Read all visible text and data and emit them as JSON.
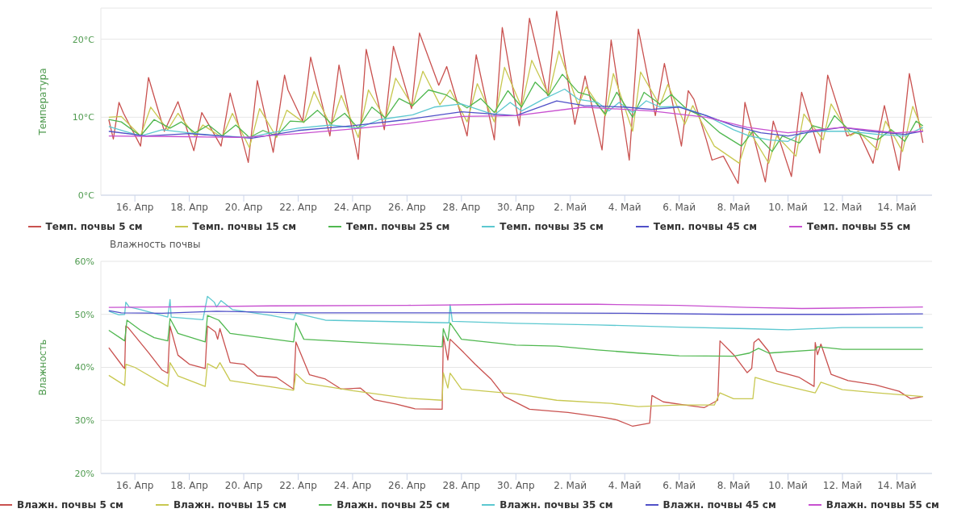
{
  "chart_data": [
    {
      "type": "line",
      "ylabel": "Температура",
      "xlim": [
        "--04-14T18:00",
        "--05-15T07:00"
      ],
      "ylim": [
        0,
        24
      ],
      "xticks": [
        {
          "value": "--04-16",
          "label": "16. Апр"
        },
        {
          "value": "--04-18",
          "label": "18. Апр"
        },
        {
          "value": "--04-20",
          "label": "20. Апр"
        },
        {
          "value": "--04-22",
          "label": "22. Апр"
        },
        {
          "value": "--04-24",
          "label": "24. Апр"
        },
        {
          "value": "--04-26",
          "label": "26. Апр"
        },
        {
          "value": "--04-28",
          "label": "28. Апр"
        },
        {
          "value": "--04-30",
          "label": "30. Апр"
        },
        {
          "value": "--05-02",
          "label": "2. Май"
        },
        {
          "value": "--05-04",
          "label": "4. Май"
        },
        {
          "value": "--05-06",
          "label": "6. Май"
        },
        {
          "value": "--05-08",
          "label": "8. Май"
        },
        {
          "value": "--05-10",
          "label": "10. Май"
        },
        {
          "value": "--05-12",
          "label": "12. Май"
        },
        {
          "value": "--05-14",
          "label": "14. Май"
        }
      ],
      "yticks": [
        {
          "value": 0,
          "label": "0°C"
        },
        {
          "value": 10,
          "label": "10°C"
        },
        {
          "value": 20,
          "label": "20°C"
        }
      ],
      "grid": "y",
      "legend": "bottom",
      "marker": "none",
      "line_style": "solid",
      "series": [
        {
          "name": "Темп. почвы 5 см",
          "color": "#c9514f",
          "x": [
            "--04-15T01:00",
            "--04-15T05:00",
            "--04-15T10:00",
            "--04-15T14:00",
            "--04-16T05:00",
            "--04-16T12:00",
            "--04-17T02:00",
            "--04-17T14:00",
            "--04-18T04:00",
            "--04-18T11:00",
            "--04-19T04:00",
            "--04-19T12:00",
            "--04-20T04:00",
            "--04-20T12:00",
            "--04-21T02:00",
            "--04-21T12:00",
            "--04-21T15:00",
            "--04-22T04:00",
            "--04-22T11:00",
            "--04-23T04:00",
            "--04-23T12:00",
            "--04-24T05:00",
            "--04-24T12:00",
            "--04-25T04:00",
            "--04-25T12:00",
            "--04-26T04:00",
            "--04-26T11:00",
            "--04-27T04:00",
            "--04-27T11:00",
            "--04-28T05:00",
            "--04-28T13:00",
            "--04-29T05:00",
            "--04-29T12:00",
            "--04-30T03:00",
            "--04-30T12:00",
            "--05-01T04:00",
            "--05-01T12:00",
            "--05-02T04:00",
            "--05-02T13:00",
            "--05-03T04:00",
            "--05-03T12:00",
            "--05-04T04:00",
            "--05-04T12:00",
            "--05-05T03:00",
            "--05-05T11:00",
            "--05-06T02:00",
            "--05-06T08:00",
            "--05-06T13:00",
            "--05-07T00:00",
            "--05-07T05:00",
            "--05-07T15:00",
            "--05-08T04:00",
            "--05-08T10:00",
            "--05-09T04:00",
            "--05-09T11:00",
            "--05-10T03:00",
            "--05-10T12:00",
            "--05-11T04:00",
            "--05-11T11:00",
            "--05-12T04:00",
            "--05-12T14:00",
            "--05-13T03:00",
            "--05-13T13:00",
            "--05-14T02:00",
            "--05-14T11:00",
            "--05-14T23:00"
          ],
          "values": [
            9.7,
            7.2,
            11.9,
            10.5,
            6.3,
            15.1,
            8.2,
            12.0,
            5.7,
            10.6,
            6.3,
            13.1,
            4.2,
            14.7,
            5.5,
            15.4,
            13.5,
            9.5,
            17.7,
            7.6,
            16.7,
            4.6,
            18.7,
            8.4,
            19.1,
            11.1,
            20.8,
            14.1,
            16.5,
            7.6,
            18.0,
            7.1,
            21.5,
            8.9,
            22.7,
            12.8,
            23.6,
            9.1,
            15.3,
            5.8,
            19.9,
            4.5,
            21.3,
            10.2,
            16.9,
            6.3,
            13.4,
            12.3,
            7.1,
            4.5,
            5.0,
            1.5,
            11.9,
            1.7,
            9.5,
            2.4,
            13.2,
            5.4,
            15.4,
            7.6,
            8.2,
            4.1,
            11.5,
            3.2,
            15.6,
            6.7
          ]
        },
        {
          "name": "Темп. почвы 15 см",
          "color": "#c8c850",
          "x": [
            "--04-15T01:00",
            "--04-15T12:00",
            "--04-16T05:00",
            "--04-16T14:00",
            "--04-17T05:00",
            "--04-17T14:00",
            "--04-18T05:00",
            "--04-18T12:00",
            "--04-19T05:00",
            "--04-19T14:00",
            "--04-20T05:00",
            "--04-20T14:00",
            "--04-21T05:00",
            "--04-21T14:00",
            "--04-22T05:00",
            "--04-22T14:00",
            "--04-23T05:00",
            "--04-23T14:00",
            "--04-24T05:00",
            "--04-24T14:00",
            "--04-25T05:00",
            "--04-25T14:00",
            "--04-26T05:00",
            "--04-26T14:00",
            "--04-27T05:00",
            "--04-27T14:00",
            "--04-28T05:00",
            "--04-28T14:00",
            "--04-29T05:00",
            "--04-29T14:00",
            "--04-30T05:00",
            "--04-30T14:00",
            "--05-01T05:00",
            "--05-01T14:00",
            "--05-02T07:00",
            "--05-02T14:00",
            "--05-03T07:00",
            "--05-03T14:00",
            "--05-04T07:00",
            "--05-04T14:00",
            "--05-05T07:00",
            "--05-05T14:00",
            "--05-06T05:00",
            "--05-06T12:00",
            "--05-07T07:00",
            "--05-08T05:00",
            "--05-08T14:00",
            "--05-09T07:00",
            "--05-09T14:00",
            "--05-10T07:00",
            "--05-10T14:00",
            "--05-11T07:00",
            "--05-11T14:00",
            "--05-12T07:00",
            "--05-12T14:00",
            "--05-13T07:00",
            "--05-13T14:00",
            "--05-14T05:00",
            "--05-14T14:00",
            "--05-14T23:00"
          ],
          "values": [
            10.0,
            10.1,
            7.6,
            11.3,
            8.4,
            10.5,
            7.6,
            9.0,
            7.4,
            10.5,
            6.1,
            11.1,
            7.4,
            10.9,
            9.3,
            13.3,
            8.8,
            12.8,
            7.4,
            13.5,
            9.7,
            15.0,
            11.4,
            15.9,
            11.6,
            13.5,
            9.4,
            14.3,
            9.4,
            16.4,
            11.3,
            17.3,
            12.8,
            18.5,
            11.5,
            13.9,
            10.2,
            15.6,
            8.2,
            15.8,
            11.5,
            14.2,
            9.1,
            11.5,
            6.3,
            4.1,
            8.2,
            4.1,
            7.6,
            5.0,
            10.4,
            7.1,
            11.7,
            7.6,
            8.2,
            5.8,
            9.5,
            5.6,
            11.4,
            8.2
          ]
        },
        {
          "name": "Темп. почвы 25 см",
          "color": "#50b850",
          "x": [
            "--04-15T01:00",
            "--04-15T12:00",
            "--04-16T05:00",
            "--04-16T17:00",
            "--04-17T07:00",
            "--04-17T17:00",
            "--04-18T05:00",
            "--04-18T17:00",
            "--04-19T05:00",
            "--04-19T17:00",
            "--04-20T05:00",
            "--04-20T17:00",
            "--04-21T05:00",
            "--04-21T17:00",
            "--04-22T05:00",
            "--04-22T17:00",
            "--04-23T05:00",
            "--04-23T17:00",
            "--04-24T05:00",
            "--04-24T17:00",
            "--04-25T05:00",
            "--04-25T17:00",
            "--04-26T05:00",
            "--04-26T19:00",
            "--04-27T10:00",
            "--04-28T05:00",
            "--04-28T17:00",
            "--04-29T05:00",
            "--04-29T17:00",
            "--04-30T05:00",
            "--04-30T17:00",
            "--05-01T05:00",
            "--05-01T17:00",
            "--05-02T07:00",
            "--05-02T17:00",
            "--05-03T07:00",
            "--05-03T17:00",
            "--05-04T07:00",
            "--05-04T17:00",
            "--05-05T07:00",
            "--05-05T17:00",
            "--05-06T07:00",
            "--05-06T19:00",
            "--05-07T12:00",
            "--05-08T07:00",
            "--05-08T17:00",
            "--05-09T10:00",
            "--05-09T19:00",
            "--05-10T10:00",
            "--05-10T22:00",
            "--05-11T10:00",
            "--05-11T17:00",
            "--05-12T07:00",
            "--05-13T07:00",
            "--05-13T19:00",
            "--05-14T07:00",
            "--05-14T17:00",
            "--05-14T23:00"
          ],
          "values": [
            9.7,
            9.4,
            7.6,
            9.7,
            8.6,
            9.4,
            8.0,
            9.0,
            7.6,
            9.0,
            7.4,
            8.3,
            7.6,
            9.5,
            9.4,
            10.9,
            9.2,
            10.5,
            8.6,
            11.3,
            9.9,
            12.4,
            11.5,
            13.5,
            12.9,
            11.2,
            12.4,
            10.6,
            13.4,
            11.3,
            14.5,
            12.8,
            15.5,
            13.2,
            12.8,
            10.4,
            13.2,
            10.0,
            13.2,
            11.7,
            12.9,
            11.0,
            10.2,
            8.0,
            6.3,
            8.2,
            5.6,
            7.6,
            6.7,
            8.9,
            8.4,
            10.2,
            8.2,
            7.1,
            8.4,
            6.9,
            9.5,
            8.9
          ]
        },
        {
          "name": "Темп. почвы 35 см",
          "color": "#5cc8d0",
          "x": [
            "--04-15T01:00",
            "--04-16T05:00",
            "--04-17T00:00",
            "--04-18T05:00",
            "--04-19T05:00",
            "--04-20T05:00",
            "--04-21T00:00",
            "--04-22T00:00",
            "--04-23T05:00",
            "--04-24T05:00",
            "--04-25T00:00",
            "--04-26T05:00",
            "--04-27T00:00",
            "--04-28T00:00",
            "--04-29T05:00",
            "--04-29T19:00",
            "--04-30T05:00",
            "--05-01T00:00",
            "--05-01T19:00",
            "--05-02T07:00",
            "--05-03T00:00",
            "--05-03T10:00",
            "--05-03T19:00",
            "--05-04T07:00",
            "--05-04T19:00",
            "--05-05T07:00",
            "--05-06T00:00",
            "--05-07T00:00",
            "--05-08T00:00",
            "--05-08T14:00",
            "--05-09T07:00",
            "--05-10T00:00",
            "--05-10T14:00",
            "--05-11T10:00",
            "--05-12T05:00",
            "--05-13T07:00",
            "--05-14T07:00",
            "--05-14T23:00"
          ],
          "values": [
            8.8,
            7.6,
            8.4,
            7.9,
            7.6,
            7.4,
            8.0,
            8.6,
            9.0,
            8.6,
            9.7,
            10.3,
            11.3,
            11.7,
            10.3,
            11.9,
            10.8,
            12.3,
            13.6,
            12.3,
            11.9,
            10.8,
            11.9,
            10.6,
            12.1,
            11.3,
            11.4,
            10.2,
            8.4,
            7.6,
            7.1,
            6.9,
            8.2,
            8.2,
            8.2,
            7.8,
            7.6,
            8.7
          ]
        },
        {
          "name": "Темп. почвы 45 см",
          "color": "#5050c8",
          "x": [
            "--04-15T01:00",
            "--04-16T10:00",
            "--04-18T00:00",
            "--04-20T07:00",
            "--04-22T00:00",
            "--04-24T00:00",
            "--04-26T00:00",
            "--04-28T00:00",
            "--04-30T00:00",
            "--05-01T12:00",
            "--05-02T12:00",
            "--05-04T00:00",
            "--05-05T00:00",
            "--05-06T00:00",
            "--05-07T00:00",
            "--05-08T00:00",
            "--05-09T00:00",
            "--05-10T00:00",
            "--05-11T00:00",
            "--05-12T00:00",
            "--05-13T00:00",
            "--05-14T07:00",
            "--05-14T23:00"
          ],
          "values": [
            8.2,
            7.6,
            7.9,
            7.3,
            8.3,
            8.9,
            9.7,
            10.7,
            10.2,
            12.1,
            11.5,
            11.3,
            11.0,
            11.3,
            10.2,
            8.9,
            8.0,
            7.6,
            8.2,
            8.7,
            8.2,
            7.8,
            8.2
          ]
        },
        {
          "name": "Темп. почвы 55 см",
          "color": "#c850d0",
          "x": [
            "--04-15T01:00",
            "--04-18T00:00",
            "--04-20T00:00",
            "--04-22T00:00",
            "--04-24T00:00",
            "--04-26T00:00",
            "--04-28T00:00",
            "--04-30T00:00",
            "--05-02T12:00",
            "--05-05T00:00",
            "--05-07T00:00",
            "--05-08T12:00",
            "--05-10T00:00",
            "--05-12T00:00",
            "--05-14T00:00",
            "--05-14T23:00"
          ],
          "values": [
            7.6,
            7.5,
            7.4,
            7.9,
            8.5,
            9.2,
            10.1,
            10.2,
            11.3,
            10.8,
            10.0,
            8.7,
            8.0,
            8.7,
            8.0,
            8.2
          ]
        }
      ]
    },
    {
      "type": "line",
      "title": "Влажность почвы",
      "ylabel": "Влажность",
      "xlim": [
        "--04-14T18:00",
        "--05-15T07:00"
      ],
      "ylim": [
        20,
        60
      ],
      "xticks": [
        {
          "value": "--04-16",
          "label": "16. Апр"
        },
        {
          "value": "--04-18",
          "label": "18. Апр"
        },
        {
          "value": "--04-20",
          "label": "20. Апр"
        },
        {
          "value": "--04-22",
          "label": "22. Апр"
        },
        {
          "value": "--04-24",
          "label": "24. Апр"
        },
        {
          "value": "--04-26",
          "label": "26. Апр"
        },
        {
          "value": "--04-28",
          "label": "28. Апр"
        },
        {
          "value": "--04-30",
          "label": "30. Апр"
        },
        {
          "value": "--05-02",
          "label": "2. Май"
        },
        {
          "value": "--05-04",
          "label": "4. Май"
        },
        {
          "value": "--05-06",
          "label": "6. Май"
        },
        {
          "value": "--05-08",
          "label": "8. Май"
        },
        {
          "value": "--05-10",
          "label": "10. Май"
        },
        {
          "value": "--05-12",
          "label": "12. Май"
        },
        {
          "value": "--05-14",
          "label": "14. Май"
        }
      ],
      "yticks": [
        {
          "value": 20,
          "label": "20%"
        },
        {
          "value": 30,
          "label": "30%"
        },
        {
          "value": 40,
          "label": "40%"
        },
        {
          "value": 50,
          "label": "50%"
        },
        {
          "value": 60,
          "label": "60%"
        }
      ],
      "grid": "y",
      "legend": "bottom",
      "marker": "none",
      "line_style": "solid",
      "series": [
        {
          "name": "Влажн. почвы 5 см",
          "color": "#c9514f",
          "x": [
            "--04-15T01:00",
            "--04-15T14:00",
            "--04-15T15:00",
            "--04-15T16:00",
            "--04-15T18:00",
            "--04-16T12:00",
            "--04-17T00:00",
            "--04-17T05:00",
            "--04-17T07:00",
            "--04-17T14:00",
            "--04-18T00:00",
            "--04-18T14:00",
            "--04-18T16:00",
            "--04-18T23:00",
            "--04-19T01:00",
            "--04-19T03:00",
            "--04-19T12:00",
            "--04-20T00:00",
            "--04-20T12:00",
            "--04-21T05:00",
            "--04-21T20:00",
            "--04-21T22:00",
            "--04-22T10:00",
            "--04-23T00:00",
            "--04-23T14:00",
            "--04-24T07:00",
            "--04-24T19:00",
            "--04-25T14:00",
            "--04-26T07:00",
            "--04-27T07:00",
            "--04-27T08:00",
            "--04-27T12:00",
            "--04-27T14:00",
            "--04-28T02:00",
            "--04-28T12:00",
            "--04-29T02:00",
            "--04-29T14:00",
            "--04-30T12:00",
            "--05-01T22:00",
            "--05-03T05:00",
            "--05-03T17:00",
            "--05-04T07:00",
            "--05-04T22:00",
            "--05-05T00:00",
            "--05-05T10:00",
            "--05-06T05:00",
            "--05-06T22:00",
            "--05-07T10:00",
            "--05-07T12:00",
            "--05-08T00:00",
            "--05-08T12:00",
            "--05-08T16:00",
            "--05-08T18:00",
            "--05-08T22:00",
            "--05-09T07:00",
            "--05-09T14:00",
            "--05-10T10:00",
            "--05-10T23:00",
            "--05-11T00:00",
            "--05-11T02:00",
            "--05-11T05:00",
            "--05-11T14:00",
            "--05-12T05:00",
            "--05-13T05:00",
            "--05-14T02:00",
            "--05-14T12:00",
            "--05-14T23:00"
          ],
          "values": [
            43.7,
            40.0,
            39.8,
            47.8,
            47.5,
            42.8,
            39.5,
            38.9,
            47.8,
            42.3,
            40.6,
            39.8,
            47.8,
            46.7,
            45.3,
            47.3,
            40.9,
            40.6,
            38.4,
            38.1,
            35.9,
            44.8,
            38.6,
            37.8,
            35.9,
            36.1,
            33.9,
            33.1,
            32.2,
            32.1,
            45.9,
            41.4,
            45.3,
            42.8,
            40.6,
            37.8,
            34.5,
            32.1,
            31.5,
            30.6,
            30.1,
            28.9,
            29.5,
            34.7,
            33.5,
            32.9,
            32.4,
            33.8,
            45.0,
            42.4,
            39.0,
            39.8,
            44.7,
            45.4,
            43.0,
            39.3,
            38.1,
            36.4,
            44.7,
            42.4,
            44.4,
            38.7,
            37.5,
            36.7,
            35.5,
            34.1,
            34.5
          ]
        },
        {
          "name": "Влажн. почвы 15 см",
          "color": "#c8c850",
          "x": [
            "--04-15T01:00",
            "--04-15T15:00",
            "--04-15T16:00",
            "--04-16T00:00",
            "--04-17T05:00",
            "--04-17T07:00",
            "--04-17T14:00",
            "--04-18T14:00",
            "--04-18T16:00",
            "--04-19T00:00",
            "--04-19T03:00",
            "--04-19T12:00",
            "--04-21T20:00",
            "--04-21T22:00",
            "--04-22T07:00",
            "--04-24T00:00",
            "--04-26T00:00",
            "--04-27T07:00",
            "--04-27T08:00",
            "--04-27T12:00",
            "--04-27T14:00",
            "--04-28T00:00",
            "--04-30T00:00",
            "--05-01T12:00",
            "--05-03T12:00",
            "--05-04T12:00",
            "--05-06T00:00",
            "--05-07T07:00",
            "--05-07T12:00",
            "--05-08T00:00",
            "--05-08T17:00",
            "--05-08T19:00",
            "--05-09T12:00",
            "--05-11T00:00",
            "--05-11T05:00",
            "--05-12T00:00",
            "--05-13T07:00",
            "--05-14T23:00"
          ],
          "values": [
            38.5,
            36.6,
            40.6,
            40.0,
            36.4,
            40.9,
            38.4,
            36.4,
            40.7,
            39.8,
            40.9,
            37.5,
            35.7,
            38.8,
            37.0,
            35.6,
            34.2,
            33.8,
            39.0,
            36.1,
            38.9,
            35.9,
            35.0,
            33.8,
            33.2,
            32.6,
            32.9,
            32.9,
            35.2,
            34.1,
            34.1,
            38.1,
            37.0,
            35.2,
            37.2,
            35.8,
            35.2,
            34.5
          ]
        },
        {
          "name": "Влажн. почвы 25 см",
          "color": "#50b850",
          "x": [
            "--04-15T01:00",
            "--04-15T15:00",
            "--04-15T17:00",
            "--04-16T05:00",
            "--04-16T17:00",
            "--04-17T05:00",
            "--04-17T07:00",
            "--04-17T14:00",
            "--04-18T14:00",
            "--04-18T16:00",
            "--04-19T02:00",
            "--04-19T12:00",
            "--04-21T20:00",
            "--04-21T22:00",
            "--04-22T05:00",
            "--04-25T00:00",
            "--04-27T07:00",
            "--04-27T08:00",
            "--04-27T12:00",
            "--04-27T14:00",
            "--04-28T00:00",
            "--04-30T00:00",
            "--05-01T12:00",
            "--05-03T00:00",
            "--05-04T12:00",
            "--05-06T00:00",
            "--05-08T00:00",
            "--05-08T14:00",
            "--05-08T22:00",
            "--05-09T07:00",
            "--05-11T00:00",
            "--05-11T02:00",
            "--05-12T00:00",
            "--05-14T23:00"
          ],
          "values": [
            47.0,
            45.0,
            48.9,
            47.0,
            45.6,
            45.0,
            49.2,
            46.4,
            44.8,
            49.8,
            48.9,
            46.4,
            44.8,
            48.4,
            45.3,
            44.5,
            43.9,
            47.3,
            45.0,
            48.4,
            45.3,
            44.2,
            44.0,
            43.3,
            42.7,
            42.2,
            42.1,
            42.7,
            43.6,
            42.7,
            43.3,
            43.9,
            43.4,
            43.4
          ]
        },
        {
          "name": "Влажн. почвы 35 см",
          "color": "#5cc8d0",
          "x": [
            "--04-15T01:00",
            "--04-15T10:00",
            "--04-15T15:00",
            "--04-15T16:00",
            "--04-15T19:00",
            "--04-16T05:00",
            "--04-17T05:00",
            "--04-17T07:00",
            "--04-17T08:00",
            "--04-18T12:00",
            "--04-18T16:00",
            "--04-18T22:00",
            "--04-19T00:00",
            "--04-19T04:00",
            "--04-19T14:00",
            "--04-21T00:00",
            "--04-21T20:00",
            "--04-21T22:00",
            "--04-23T00:00",
            "--04-27T13:00",
            "--04-27T14:00",
            "--04-27T16:00",
            "--04-30T00:00",
            "--05-03T00:00",
            "--05-06T00:00",
            "--05-08T12:00",
            "--05-10T00:00",
            "--05-12T00:00",
            "--05-14T23:00"
          ],
          "values": [
            50.6,
            49.9,
            50.0,
            52.3,
            51.4,
            50.9,
            49.5,
            52.8,
            49.5,
            49.0,
            53.4,
            52.3,
            51.4,
            52.6,
            50.9,
            49.8,
            49.0,
            50.2,
            48.9,
            48.4,
            51.8,
            48.7,
            48.3,
            48.0,
            47.6,
            47.3,
            47.1,
            47.5,
            47.5
          ]
        },
        {
          "name": "Влажн. почвы 45 см",
          "color": "#5050c8",
          "x": [
            "--04-15T01:00",
            "--04-15T12:00",
            "--04-17T00:00",
            "--04-19T00:00",
            "--04-22T00:00",
            "--04-26T00:00",
            "--04-30T00:00",
            "--05-04T00:00",
            "--05-08T00:00",
            "--05-12T00:00",
            "--05-14T23:00"
          ],
          "values": [
            50.7,
            50.3,
            50.2,
            50.6,
            50.3,
            50.3,
            50.3,
            50.2,
            50.0,
            50.0,
            50.1
          ]
        },
        {
          "name": "Влажн. почвы 55 см",
          "color": "#c850d0",
          "x": [
            "--04-15T01:00",
            "--04-17T00:00",
            "--04-21T00:00",
            "--04-26T00:00",
            "--04-30T00:00",
            "--05-03T00:00",
            "--05-06T00:00",
            "--05-08T12:00",
            "--05-10T12:00",
            "--05-14T00:00",
            "--05-14T23:00"
          ],
          "values": [
            51.3,
            51.4,
            51.6,
            51.7,
            51.9,
            51.9,
            51.7,
            51.3,
            51.1,
            51.3,
            51.4
          ]
        }
      ]
    }
  ]
}
